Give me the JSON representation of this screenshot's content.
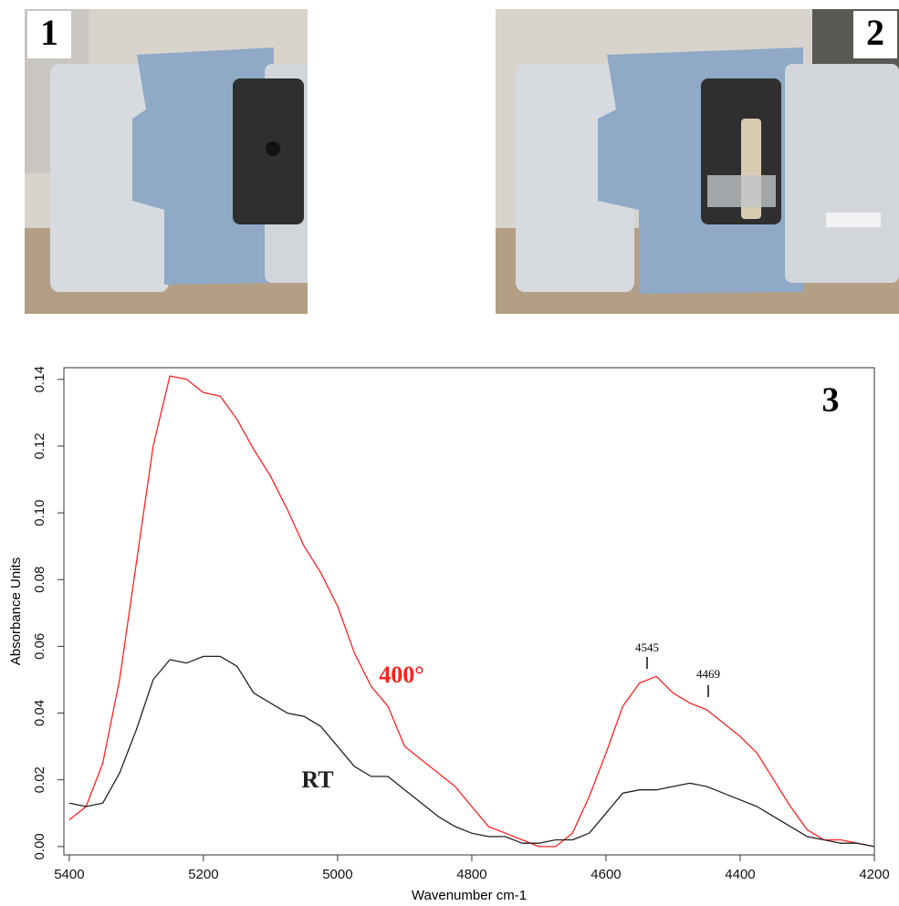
{
  "panels": [
    {
      "label": "1"
    },
    {
      "label": "2"
    }
  ],
  "chart_data": {
    "type": "line",
    "panel_label": "3",
    "x_label": "Wavenumber cm-1",
    "y_label": "Absorbance Units",
    "x": [
      5400,
      5375,
      5350,
      5325,
      5300,
      5275,
      5250,
      5225,
      5200,
      5175,
      5150,
      5125,
      5100,
      5075,
      5050,
      5025,
      5000,
      4975,
      4950,
      4925,
      4900,
      4875,
      4850,
      4825,
      4800,
      4775,
      4750,
      4725,
      4700,
      4675,
      4650,
      4625,
      4600,
      4575,
      4550,
      4525,
      4500,
      4475,
      4450,
      4425,
      4400,
      4375,
      4350,
      4325,
      4300,
      4275,
      4250,
      4225,
      4200
    ],
    "series": [
      {
        "name": "400°",
        "color": "#ff2020",
        "values": [
          0.008,
          0.012,
          0.025,
          0.05,
          0.085,
          0.12,
          0.141,
          0.14,
          0.136,
          0.135,
          0.128,
          0.119,
          0.111,
          0.101,
          0.09,
          0.082,
          0.072,
          0.058,
          0.048,
          0.042,
          0.03,
          0.026,
          0.022,
          0.018,
          0.012,
          0.006,
          0.004,
          0.002,
          0.0,
          0.0,
          0.004,
          0.015,
          0.028,
          0.042,
          0.049,
          0.051,
          0.046,
          0.043,
          0.041,
          0.037,
          0.033,
          0.028,
          0.02,
          0.012,
          0.005,
          0.002,
          0.002,
          0.001,
          0.0
        ]
      },
      {
        "name": "RT",
        "color": "#222222",
        "values": [
          0.013,
          0.012,
          0.013,
          0.022,
          0.035,
          0.05,
          0.056,
          0.055,
          0.057,
          0.057,
          0.054,
          0.046,
          0.043,
          0.04,
          0.039,
          0.036,
          0.03,
          0.024,
          0.021,
          0.021,
          0.017,
          0.013,
          0.009,
          0.006,
          0.004,
          0.003,
          0.003,
          0.001,
          0.001,
          0.002,
          0.002,
          0.004,
          0.01,
          0.016,
          0.017,
          0.017,
          0.018,
          0.019,
          0.018,
          0.016,
          0.014,
          0.012,
          0.009,
          0.006,
          0.003,
          0.002,
          0.001,
          0.001,
          0.0
        ]
      }
    ],
    "annotations": [
      "4545",
      "4469"
    ],
    "xlim": [
      5408,
      4200
    ],
    "xticks": [
      5400,
      5200,
      5000,
      4800,
      4600,
      4400,
      4200
    ],
    "ylim": [
      -0.0025,
      0.1435
    ],
    "yticks": [
      {
        "value": 0,
        "label": "0.00"
      },
      0.02,
      0.04,
      0.06,
      0.08,
      {
        "value": 0.1,
        "label": "0.10"
      },
      0.12,
      0.14
    ],
    "grid": false
  }
}
